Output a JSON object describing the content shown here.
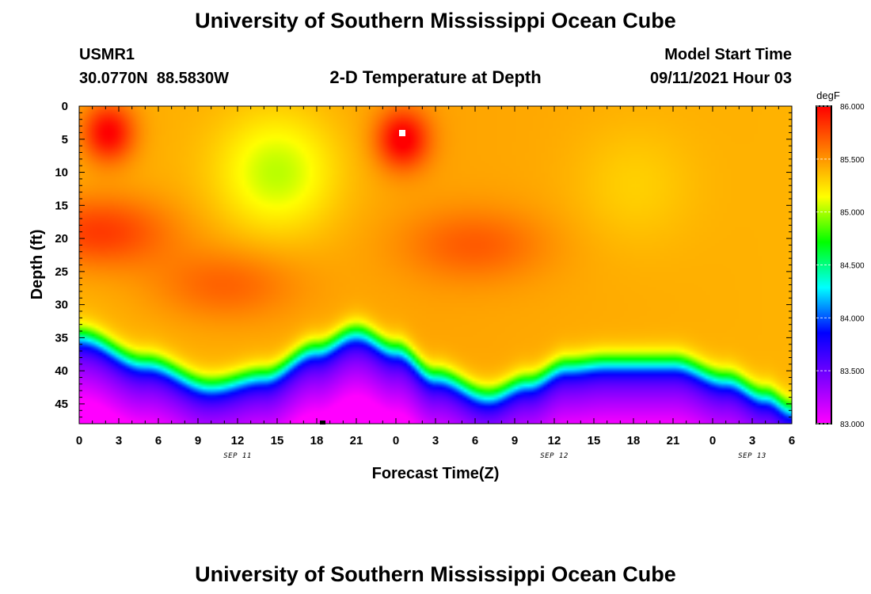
{
  "header": {
    "title": "University of Southern Mississippi Ocean Cube",
    "station": "USMR1",
    "coords": "30.0770N  88.5830W",
    "subtitle": "2-D Temperature at Depth",
    "model_label": "Model Start Time",
    "model_time": "09/11/2021 Hour 03"
  },
  "footer": {
    "title": "University of Southern Mississippi Ocean Cube"
  },
  "chart_data": {
    "type": "heatmap",
    "title": "2-D Temperature at Depth",
    "xlabel": "Forecast Time(Z)",
    "ylabel": "Depth (ft)",
    "x_unit": "hours since Sep 11 00Z",
    "xlim": [
      0,
      54
    ],
    "ylim": [
      0,
      48
    ],
    "y_inverted": true,
    "xticks": [
      0,
      3,
      6,
      9,
      12,
      15,
      18,
      21,
      24,
      27,
      30,
      33,
      36,
      39,
      42,
      45,
      48,
      51,
      54
    ],
    "xtick_labels": [
      "0",
      "3",
      "6",
      "9",
      "12",
      "15",
      "18",
      "21",
      "0",
      "3",
      "6",
      "9",
      "12",
      "15",
      "18",
      "21",
      "0",
      "3",
      "6"
    ],
    "yticks": [
      0,
      5,
      10,
      15,
      20,
      25,
      30,
      35,
      40,
      45
    ],
    "ytick_labels": [
      "0",
      "5",
      "10",
      "15",
      "20",
      "25",
      "30",
      "35",
      "40",
      "45"
    ],
    "date_labels": [
      {
        "x": 12,
        "label": "SEP 11"
      },
      {
        "x": 36,
        "label": "SEP 12"
      },
      {
        "x": 51,
        "label": "SEP 13"
      }
    ],
    "colorbar": {
      "unit": "degF",
      "min": 83.0,
      "max": 86.0,
      "ticks": [
        86.0,
        85.5,
        85.0,
        84.5,
        84.0,
        83.5,
        83.0
      ],
      "tick_labels": [
        "86.000",
        "85.500",
        "85.000",
        "84.500",
        "84.000",
        "83.500",
        "83.000"
      ],
      "colors": [
        "#ff00ff",
        "#7f00ff",
        "#0000ff",
        "#00ffff",
        "#00ff00",
        "#ffff00",
        "#ff8000",
        "#ff0000"
      ]
    },
    "thermocline_depth_ft": [
      {
        "t": 0,
        "d": 31
      },
      {
        "t": 5,
        "d": 35
      },
      {
        "t": 10,
        "d": 38.5
      },
      {
        "t": 14,
        "d": 37
      },
      {
        "t": 18,
        "d": 33
      },
      {
        "t": 21,
        "d": 30.5
      },
      {
        "t": 24,
        "d": 33
      },
      {
        "t": 27,
        "d": 37
      },
      {
        "t": 31,
        "d": 40
      },
      {
        "t": 34,
        "d": 38
      },
      {
        "t": 37,
        "d": 35.5
      },
      {
        "t": 40,
        "d": 35
      },
      {
        "t": 45,
        "d": 35
      },
      {
        "t": 49,
        "d": 37.5
      },
      {
        "t": 52,
        "d": 40
      },
      {
        "t": 54,
        "d": 42
      }
    ],
    "warm_cores": [
      {
        "t": 2.2,
        "d": 4,
        "temp": 86.0
      },
      {
        "t": 24.5,
        "d": 5,
        "temp": 86.0
      },
      {
        "t": 1.5,
        "d": 19,
        "temp": 85.8
      },
      {
        "t": 11,
        "d": 27,
        "temp": 85.65
      },
      {
        "t": 30,
        "d": 21,
        "temp": 85.65
      }
    ],
    "cool_cores": [
      {
        "t": 15,
        "d": 10,
        "temp": 85.0
      },
      {
        "t": 42,
        "d": 12,
        "temp": 85.28
      }
    ]
  }
}
